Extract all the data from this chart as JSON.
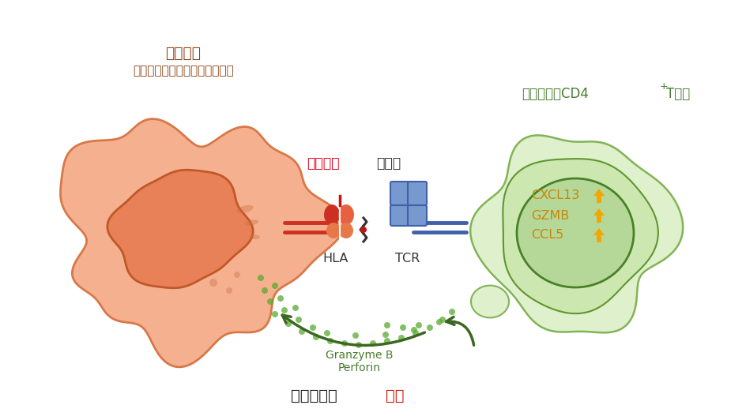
{
  "bg_color": "#ffffff",
  "target_cell_label_line1": "標的細胞",
  "target_cell_label_line2": "（がん等のネオ抗原提示細胞）",
  "target_cell_label_color": "#8B4513",
  "tcell_label_color": "#4a7c2f",
  "neo_antigen_color_red": "#e8001a",
  "neo_antigen_color_black": "#333333",
  "hla_label": "HLA",
  "tcr_label": "TCR",
  "label_color": "#333333",
  "granzyme_label_line1": "Granzyme B",
  "granzyme_label_line2": "Perforin",
  "granzyme_label_color": "#4a7c2f",
  "attack_label_color": "#1a1a1a",
  "attack_label_red": "#cc1100",
  "nucleus_labels": [
    "CXCL13",
    "GZMB",
    "CCL5"
  ],
  "nucleus_label_color": "#c8860a",
  "up_arrow_color": "#f0a800",
  "target_outer_fill": "#f5b090",
  "target_outer_edge": "#d87848",
  "target_inner_fill": "#e88058",
  "target_inner_edge": "#c05828",
  "tcell_outer_fill": "#dff0cc",
  "tcell_outer_edge": "#82b455",
  "tcell_inner_fill": "#cce8b0",
  "tcell_inner_edge": "#60962e",
  "tcell_nucleus_fill": "#b5d898",
  "tcell_nucleus_edge": "#4a8028",
  "hla_upper_left_fill": "#cc3020",
  "hla_upper_right_fill": "#e86040",
  "hla_lower_fill": "#e87848",
  "hla_stem_color": "#cc3020",
  "tcr_fill": "#7898d0",
  "tcr_edge": "#4060a8",
  "tcr_stem_color": "#4060a8",
  "red_line_color": "#cc1010",
  "bind_symbol_color": "#333333",
  "dot_color": "#5aaa30",
  "arrow_color": "#3a6820",
  "organelle_color": "#c87040"
}
